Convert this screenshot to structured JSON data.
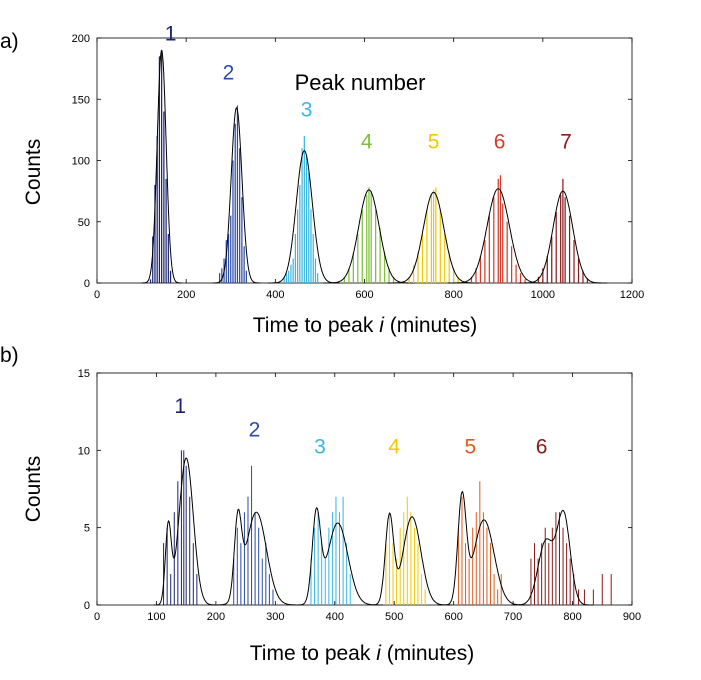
{
  "chart_data": [
    {
      "type": "bar",
      "panel_label": "a)",
      "annotation": "Peak number",
      "xlabel": "Time to peak ",
      "xlabel_italic": "i",
      "xlabel_suffix": " (minutes)",
      "ylabel": "Counts",
      "xlim": [
        0,
        1200
      ],
      "ylim": [
        0,
        200
      ],
      "xticks": [
        0,
        200,
        400,
        600,
        800,
        1000,
        1200
      ],
      "yticks": [
        0,
        50,
        100,
        150,
        200
      ],
      "bin_width": 5,
      "series": [
        {
          "name": "1",
          "color": "#1b2370",
          "center": 145,
          "sigma": 10,
          "peak": 190,
          "label_x": 165,
          "label_y": 198,
          "bars": [
            [
              120,
              3
            ],
            [
              125,
              38
            ],
            [
              130,
              80
            ],
            [
              135,
              120
            ],
            [
              140,
              185
            ],
            [
              145,
              190
            ],
            [
              150,
              140
            ],
            [
              155,
              85
            ],
            [
              160,
              40
            ],
            [
              165,
              10
            ]
          ]
        },
        {
          "name": "2",
          "color": "#2b4ba5",
          "center": 313,
          "sigma": 12,
          "peak": 143,
          "label_x": 295,
          "label_y": 166,
          "bars": [
            [
              275,
              8
            ],
            [
              280,
              12
            ],
            [
              285,
              20
            ],
            [
              290,
              35
            ],
            [
              295,
              40
            ],
            [
              300,
              55
            ],
            [
              305,
              100
            ],
            [
              310,
              130
            ],
            [
              315,
              145
            ],
            [
              320,
              110
            ],
            [
              325,
              70
            ],
            [
              330,
              30
            ],
            [
              335,
              10
            ]
          ]
        },
        {
          "name": "3",
          "color": "#38b6e0",
          "center": 465,
          "sigma": 18,
          "peak": 108,
          "label_x": 470,
          "label_y": 136,
          "bars": [
            [
              420,
              5
            ],
            [
              425,
              8
            ],
            [
              430,
              10
            ],
            [
              435,
              15
            ],
            [
              440,
              20
            ],
            [
              445,
              40
            ],
            [
              450,
              60
            ],
            [
              455,
              80
            ],
            [
              460,
              110
            ],
            [
              465,
              120
            ],
            [
              470,
              105
            ],
            [
              475,
              90
            ],
            [
              480,
              60
            ],
            [
              485,
              40
            ],
            [
              490,
              20
            ],
            [
              495,
              8
            ]
          ]
        },
        {
          "name": "4",
          "color": "#7dbf3c",
          "center": 610,
          "sigma": 23,
          "peak": 76,
          "label_x": 605,
          "label_y": 110,
          "bars": [
            [
              555,
              5
            ],
            [
              565,
              12
            ],
            [
              575,
              25
            ],
            [
              585,
              40
            ],
            [
              595,
              60
            ],
            [
              605,
              72
            ],
            [
              610,
              78
            ],
            [
              615,
              75
            ],
            [
              625,
              60
            ],
            [
              635,
              45
            ],
            [
              645,
              25
            ],
            [
              655,
              12
            ],
            [
              665,
              5
            ]
          ]
        },
        {
          "name": "5",
          "color": "#f0c800",
          "center": 755,
          "sigma": 23,
          "peak": 74,
          "label_x": 755,
          "label_y": 110,
          "bars": [
            [
              700,
              5
            ],
            [
              710,
              15
            ],
            [
              720,
              25
            ],
            [
              730,
              40
            ],
            [
              740,
              60
            ],
            [
              750,
              72
            ],
            [
              755,
              76
            ],
            [
              760,
              78
            ],
            [
              770,
              60
            ],
            [
              780,
              40
            ],
            [
              790,
              25
            ],
            [
              800,
              12
            ],
            [
              810,
              5
            ]
          ]
        },
        {
          "name": "6",
          "color": "#d63a2a",
          "center": 900,
          "sigma": 25,
          "peak": 77,
          "label_x": 903,
          "label_y": 110,
          "bars": [
            [
              840,
              5
            ],
            [
              850,
              12
            ],
            [
              860,
              22
            ],
            [
              870,
              35
            ],
            [
              880,
              55
            ],
            [
              890,
              70
            ],
            [
              900,
              85
            ],
            [
              905,
              88
            ],
            [
              910,
              65
            ],
            [
              920,
              50
            ],
            [
              930,
              30
            ],
            [
              940,
              15
            ],
            [
              950,
              8
            ],
            [
              960,
              3
            ]
          ]
        },
        {
          "name": "7",
          "color": "#8b1a1a",
          "center": 1045,
          "sigma": 22,
          "peak": 75,
          "label_x": 1052,
          "label_y": 110,
          "bars": [
            [
              990,
              5
            ],
            [
              1000,
              12
            ],
            [
              1010,
              22
            ],
            [
              1020,
              38
            ],
            [
              1030,
              58
            ],
            [
              1040,
              72
            ],
            [
              1045,
              85
            ],
            [
              1050,
              70
            ],
            [
              1060,
              55
            ],
            [
              1070,
              35
            ],
            [
              1080,
              20
            ],
            [
              1090,
              10
            ],
            [
              1100,
              4
            ]
          ]
        }
      ]
    },
    {
      "type": "bar",
      "panel_label": "b)",
      "xlabel": "Time to peak ",
      "xlabel_italic": "i",
      "xlabel_suffix": " (minutes)",
      "ylabel": "Counts",
      "xlim": [
        0,
        900
      ],
      "ylim": [
        0,
        15
      ],
      "xticks": [
        0,
        100,
        200,
        300,
        400,
        500,
        600,
        700,
        800,
        900
      ],
      "yticks": [
        0,
        5,
        10,
        15
      ],
      "bin_width": 3,
      "series": [
        {
          "name": "1",
          "color": "#1b2370",
          "fit": [
            {
              "center": 120,
              "sigma": 5,
              "peak": 5
            },
            {
              "center": 150,
              "sigma": 12,
              "peak": 9.5
            }
          ],
          "label_x": 140,
          "label_y": 12.4,
          "bars": [
            [
              112,
              4
            ],
            [
              118,
              5
            ],
            [
              124,
              2
            ],
            [
              130,
              6
            ],
            [
              136,
              8
            ],
            [
              142,
              10
            ],
            [
              146,
              10
            ],
            [
              150,
              9
            ],
            [
              156,
              7
            ],
            [
              162,
              4
            ],
            [
              168,
              2
            ]
          ]
        },
        {
          "name": "2",
          "color": "#2b4ba5",
          "fit": [
            {
              "center": 237,
              "sigma": 6,
              "peak": 5
            },
            {
              "center": 268,
              "sigma": 17,
              "peak": 6
            }
          ],
          "label_x": 265,
          "label_y": 10.9,
          "bars": [
            [
              230,
              3
            ],
            [
              236,
              5
            ],
            [
              242,
              4
            ],
            [
              248,
              6
            ],
            [
              254,
              7
            ],
            [
              260,
              9
            ],
            [
              266,
              6
            ],
            [
              272,
              5
            ],
            [
              278,
              3
            ],
            [
              284,
              4
            ],
            [
              290,
              2
            ],
            [
              296,
              1
            ]
          ]
        },
        {
          "name": "3",
          "color": "#38b6e0",
          "fit": [
            {
              "center": 369,
              "sigma": 7,
              "peak": 5.7
            },
            {
              "center": 405,
              "sigma": 17,
              "peak": 5.3
            }
          ],
          "label_x": 375,
          "label_y": 9.8,
          "bars": [
            [
              360,
              3
            ],
            [
              366,
              5
            ],
            [
              372,
              6
            ],
            [
              378,
              4
            ],
            [
              384,
              3
            ],
            [
              390,
              5
            ],
            [
              396,
              6
            ],
            [
              402,
              7
            ],
            [
              408,
              6
            ],
            [
              414,
              7
            ],
            [
              420,
              4
            ],
            [
              426,
              2
            ]
          ]
        },
        {
          "name": "4",
          "color": "#f0c800",
          "fit": [
            {
              "center": 492,
              "sigma": 7,
              "peak": 5.7
            },
            {
              "center": 530,
              "sigma": 15,
              "peak": 5.7
            }
          ],
          "label_x": 500,
          "label_y": 9.8,
          "bars": [
            [
              486,
              4
            ],
            [
              492,
              6
            ],
            [
              498,
              4
            ],
            [
              504,
              3
            ],
            [
              510,
              5
            ],
            [
              516,
              6
            ],
            [
              522,
              7
            ],
            [
              528,
              6
            ],
            [
              534,
              5
            ],
            [
              540,
              4
            ],
            [
              546,
              2
            ],
            [
              552,
              1
            ]
          ]
        },
        {
          "name": "5",
          "color": "#e05a1e",
          "fit": [
            {
              "center": 614,
              "sigma": 7,
              "peak": 6.8
            },
            {
              "center": 651,
              "sigma": 17,
              "peak": 5.5
            }
          ],
          "label_x": 628,
          "label_y": 9.8,
          "bars": [
            [
              608,
              5
            ],
            [
              614,
              7
            ],
            [
              620,
              4
            ],
            [
              626,
              3
            ],
            [
              632,
              5
            ],
            [
              638,
              6
            ],
            [
              644,
              8
            ],
            [
              650,
              6
            ],
            [
              656,
              5
            ],
            [
              662,
              4
            ],
            [
              668,
              2
            ],
            [
              674,
              1
            ],
            [
              680,
              2
            ]
          ]
        },
        {
          "name": "6",
          "color": "#8b1a1a",
          "fit": [
            {
              "center": 755,
              "sigma": 13,
              "peak": 4.1
            },
            {
              "center": 785,
              "sigma": 11,
              "peak": 5.8
            }
          ],
          "label_x": 748,
          "label_y": 9.8,
          "bars": [
            [
              730,
              3
            ],
            [
              736,
              4
            ],
            [
              742,
              3
            ],
            [
              748,
              4
            ],
            [
              754,
              5
            ],
            [
              760,
              4
            ],
            [
              766,
              5
            ],
            [
              772,
              6
            ],
            [
              778,
              6
            ],
            [
              784,
              5
            ],
            [
              790,
              4
            ],
            [
              796,
              3
            ],
            [
              802,
              2
            ],
            [
              810,
              1
            ],
            [
              820,
              1
            ],
            [
              835,
              1
            ],
            [
              850,
              2
            ],
            [
              865,
              2
            ]
          ]
        }
      ]
    }
  ]
}
